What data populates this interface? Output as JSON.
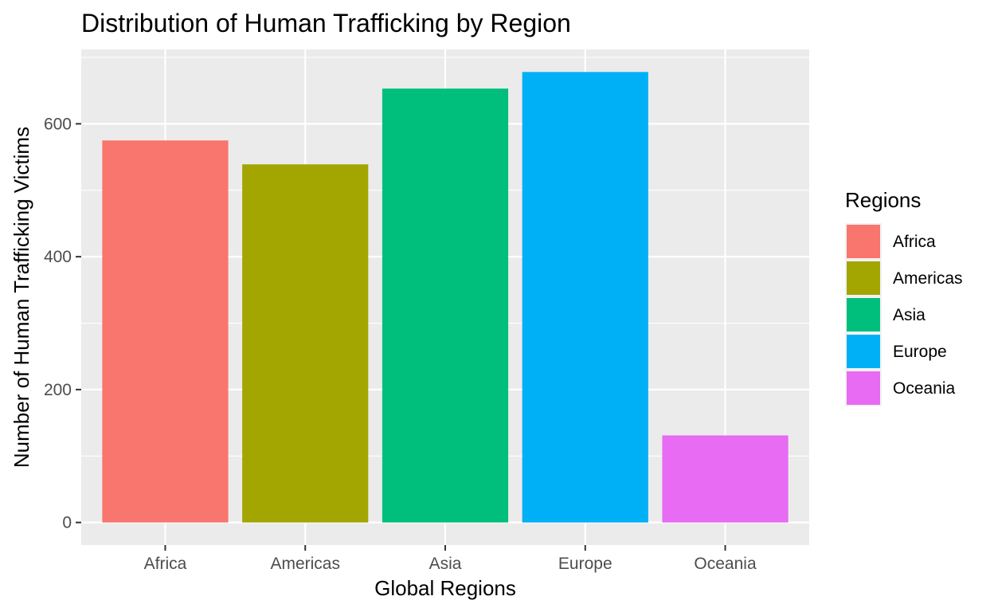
{
  "chart_data": {
    "type": "bar",
    "title": "Distribution of Human Trafficking by Region",
    "xlabel": "Global Regions",
    "ylabel": "Number of Human Trafficking Victims",
    "categories": [
      "Africa",
      "Americas",
      "Asia",
      "Europe",
      "Oceania"
    ],
    "values": [
      575,
      539,
      653,
      678,
      131
    ],
    "colors": [
      "#F8766D",
      "#A3A500",
      "#00BF7D",
      "#00B0F6",
      "#E76BF3"
    ],
    "ylim": [
      -34,
      712
    ],
    "yticks": [
      0,
      200,
      400,
      600
    ],
    "ytick_labels": [
      "0",
      "200",
      "400",
      "600"
    ],
    "grid": true,
    "panel_background": "#EBEBEB",
    "grid_color": "#FFFFFF",
    "legend": {
      "title": "Regions",
      "position": "right",
      "entries": [
        "Africa",
        "Americas",
        "Asia",
        "Europe",
        "Oceania"
      ]
    }
  }
}
